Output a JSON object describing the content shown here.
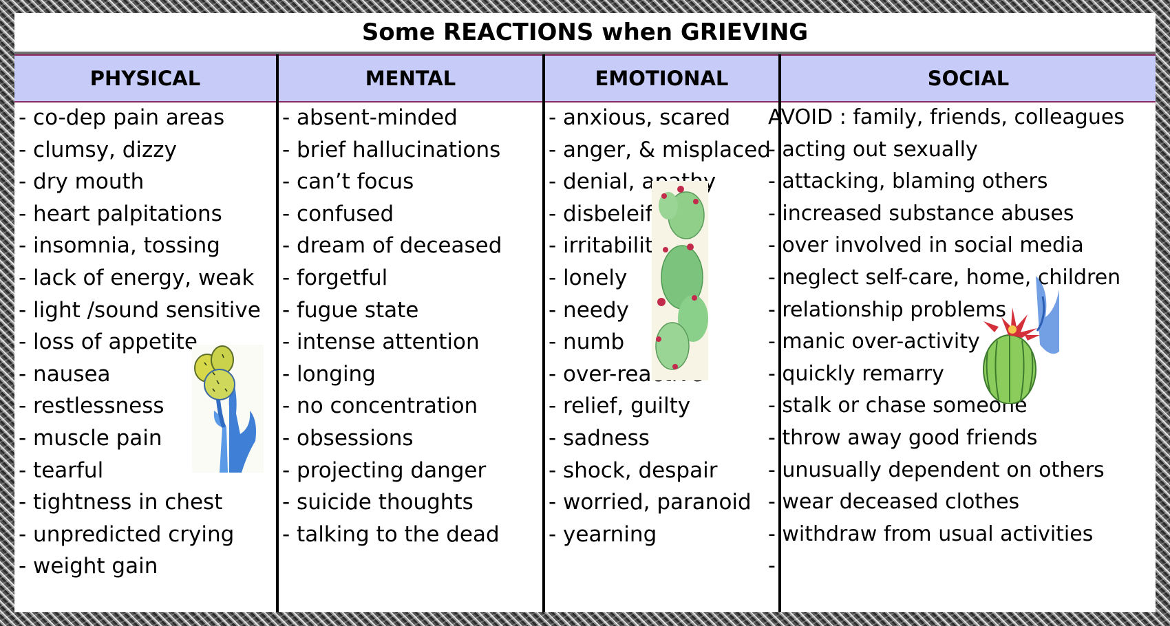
{
  "title": "Some REACTIONS when GRIEVING",
  "columns": [
    {
      "header": "PHYSICAL",
      "items": [
        " - co-dep pain areas",
        " - clumsy, dizzy",
        " - dry mouth",
        " - heart palpitations",
        "- insomnia, tossing",
        " - lack of energy, weak",
        " - light /sound sensitive",
        " - loss of appetite",
        " - nausea",
        " - restlessness",
        " - muscle pain",
        "- tearful",
        " - tightness in chest",
        " - unpredicted crying",
        " - weight gain"
      ]
    },
    {
      "header": "MENTAL",
      "items": [
        " - absent-minded",
        "- brief hallucinations",
        " - can’t focus",
        " - confused",
        " - dream of deceased",
        " - forgetful",
        "- fugue state",
        " - intense attention",
        " - longing",
        " - no concentration",
        " - obsessions",
        " - projecting danger",
        " - suicide thoughts",
        " - talking to the dead"
      ]
    },
    {
      "header": "EMOTIONAL",
      "items": [
        " - anxious, scared",
        " - anger, & misplaced",
        " - denial, apathy",
        " - disbeleif",
        " - irritability",
        " - lonely",
        " - needy",
        " - numb",
        " - over-reactive",
        " - relief, guilty",
        " - sadness",
        " - shock, despair",
        " - worried, paranoid",
        " - yearning"
      ]
    },
    {
      "header": "SOCIAL",
      "items": [
        "AVOID :  family, friends, colleagues",
        " - acting out sexually",
        " - attacking, blaming others",
        " - increased substance abuses",
        " - over involved in social media",
        " - neglect self-care, home, children",
        " - relationship problems",
        " - manic over-activity",
        " - quickly remarry",
        "- stalk or chase someone",
        " - throw away good friends",
        " - unusually dependent on others",
        " - wear deceased clothes",
        " - withdraw from usual activities",
        " -"
      ]
    }
  ],
  "decorations": [
    "cactus-illustration",
    "cactus-illustration",
    "cactus-flower-illustration"
  ]
}
